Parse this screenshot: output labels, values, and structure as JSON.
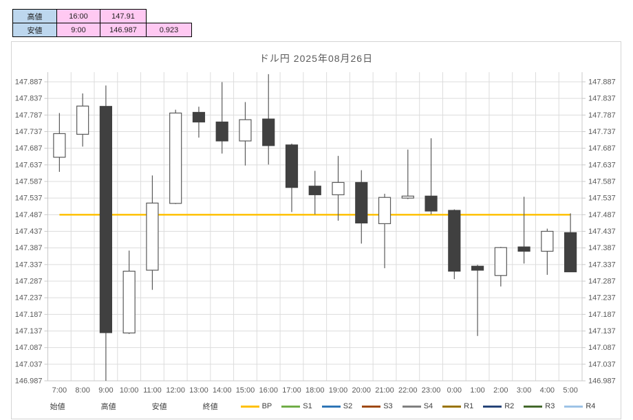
{
  "summary_table": {
    "rows": [
      {
        "label": "高値",
        "time": "16:00",
        "value": "147.91",
        "diff": ""
      },
      {
        "label": "安値",
        "time": "9:00",
        "value": "146.987",
        "diff": "0.923"
      }
    ]
  },
  "chart_data": {
    "type": "candlestick",
    "title": "ドル円  2025年08月26日",
    "x": [
      "7:00",
      "8:00",
      "9:00",
      "10:00",
      "11:00",
      "12:00",
      "13:00",
      "14:00",
      "15:00",
      "16:00",
      "17:00",
      "18:00",
      "19:00",
      "20:00",
      "21:00",
      "22:00",
      "23:00",
      "0:00",
      "1:00",
      "2:00",
      "3:00",
      "4:00",
      "5:00"
    ],
    "candles": [
      {
        "t": "7:00",
        "o": 147.66,
        "h": 147.793,
        "l": 147.616,
        "c": 147.731
      },
      {
        "t": "8:00",
        "o": 147.729,
        "h": 147.852,
        "l": 147.692,
        "c": 147.814
      },
      {
        "t": "9:00",
        "o": 147.813,
        "h": 147.876,
        "l": 146.987,
        "c": 147.132
      },
      {
        "t": "10:00",
        "o": 147.131,
        "h": 147.379,
        "l": 147.128,
        "c": 147.317
      },
      {
        "t": "11:00",
        "o": 147.32,
        "h": 147.605,
        "l": 147.261,
        "c": 147.522
      },
      {
        "t": "12:00",
        "o": 147.521,
        "h": 147.803,
        "l": 147.519,
        "c": 147.793
      },
      {
        "t": "13:00",
        "o": 147.795,
        "h": 147.812,
        "l": 147.719,
        "c": 147.766
      },
      {
        "t": "14:00",
        "o": 147.766,
        "h": 147.886,
        "l": 147.671,
        "c": 147.709
      },
      {
        "t": "15:00",
        "o": 147.709,
        "h": 147.826,
        "l": 147.635,
        "c": 147.773
      },
      {
        "t": "16:00",
        "o": 147.775,
        "h": 147.91,
        "l": 147.638,
        "c": 147.695
      },
      {
        "t": "17:00",
        "o": 147.697,
        "h": 147.701,
        "l": 147.495,
        "c": 147.569
      },
      {
        "t": "18:00",
        "o": 147.573,
        "h": 147.619,
        "l": 147.488,
        "c": 147.547
      },
      {
        "t": "19:00",
        "o": 147.547,
        "h": 147.664,
        "l": 147.469,
        "c": 147.584
      },
      {
        "t": "20:00",
        "o": 147.584,
        "h": 147.621,
        "l": 147.4,
        "c": 147.462
      },
      {
        "t": "21:00",
        "o": 147.46,
        "h": 147.55,
        "l": 147.326,
        "c": 147.539
      },
      {
        "t": "22:00",
        "o": 147.537,
        "h": 147.683,
        "l": 147.534,
        "c": 147.543
      },
      {
        "t": "23:00",
        "o": 147.543,
        "h": 147.717,
        "l": 147.488,
        "c": 147.498
      },
      {
        "t": "0:00",
        "o": 147.5,
        "h": 147.503,
        "l": 147.293,
        "c": 147.317
      },
      {
        "t": "1:00",
        "o": 147.332,
        "h": 147.336,
        "l": 147.122,
        "c": 147.32
      },
      {
        "t": "2:00",
        "o": 147.304,
        "h": 147.39,
        "l": 147.271,
        "c": 147.388
      },
      {
        "t": "3:00",
        "o": 147.39,
        "h": 147.541,
        "l": 147.34,
        "c": 147.377
      },
      {
        "t": "4:00",
        "o": 147.377,
        "h": 147.445,
        "l": 147.306,
        "c": 147.437
      },
      {
        "t": "5:00",
        "o": 147.433,
        "h": 147.491,
        "l": 147.315,
        "c": 147.315
      }
    ],
    "ylim": [
      146.987,
      147.917
    ],
    "ytick_step": 0.05,
    "yticks": [
      "146.987",
      "147.037",
      "147.087",
      "147.137",
      "147.187",
      "147.237",
      "147.287",
      "147.337",
      "147.387",
      "147.437",
      "147.487",
      "147.537",
      "147.587",
      "147.637",
      "147.687",
      "147.737",
      "147.787",
      "147.837",
      "147.887"
    ],
    "ohlc_legend": [
      "始値",
      "高値",
      "安値",
      "終値"
    ],
    "pivots": [
      {
        "name": "BP",
        "color": "#FFC000",
        "value": 147.487,
        "visible": true
      },
      {
        "name": "S1",
        "color": "#70AD47",
        "visible": false
      },
      {
        "name": "S2",
        "color": "#2E75B6",
        "visible": false
      },
      {
        "name": "S3",
        "color": "#9E480E",
        "visible": false
      },
      {
        "name": "S4",
        "color": "#7F7F7F",
        "visible": false
      },
      {
        "name": "R1",
        "color": "#997300",
        "visible": false
      },
      {
        "name": "R2",
        "color": "#264478",
        "visible": false
      },
      {
        "name": "R3",
        "color": "#43682B",
        "visible": false
      },
      {
        "name": "R4",
        "color": "#9DC3E6",
        "visible": false
      }
    ],
    "grid": true,
    "legend_position": "bottom",
    "colors": {
      "up_fill": "#ffffff",
      "down_fill": "#404040",
      "wick": "#595959",
      "gridline": "#dcdcdc",
      "axis": "#c8c8c8",
      "label": "#595959"
    }
  }
}
